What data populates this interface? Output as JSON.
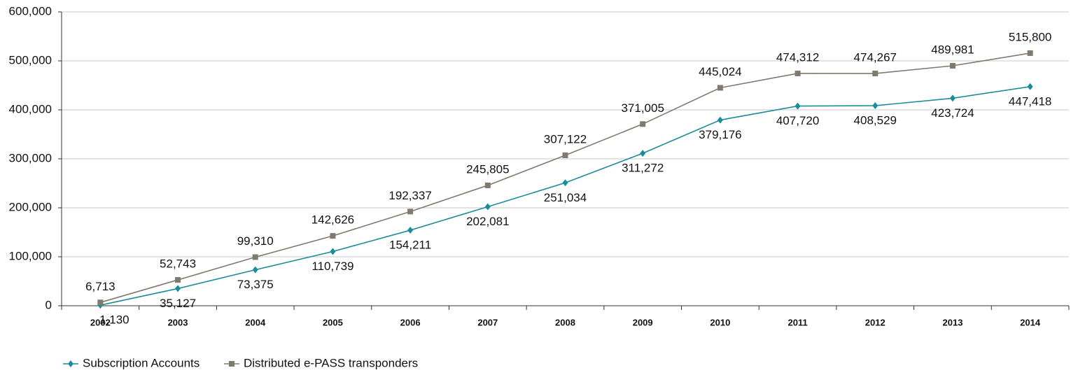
{
  "chart_data": {
    "type": "line",
    "categories": [
      "2002",
      "2003",
      "2004",
      "2005",
      "2006",
      "2007",
      "2008",
      "2009",
      "2010",
      "2011",
      "2012",
      "2013",
      "2014"
    ],
    "series": [
      {
        "name": "Subscription Accounts",
        "color": "#1b8c9b",
        "marker": "diamond",
        "values": [
          1130,
          35127,
          73375,
          110739,
          154211,
          202081,
          251034,
          311272,
          379176,
          407720,
          408529,
          423724,
          447418
        ],
        "value_labels": [
          "1,130",
          "35,127",
          "73,375",
          "110,739",
          "154,211",
          "202,081",
          "251,034",
          "311,272",
          "379,176",
          "407,720",
          "408,529",
          "423,724",
          "447,418"
        ]
      },
      {
        "name": "Distributed e-PASS transponders",
        "color": "#80796d",
        "marker": "square",
        "values": [
          6713,
          52743,
          99310,
          142626,
          192337,
          245805,
          307122,
          371005,
          445024,
          474312,
          474267,
          489981,
          515800
        ],
        "value_labels": [
          "6,713",
          "52,743",
          "99,310",
          "142,626",
          "192,337",
          "245,805",
          "307,122",
          "371,005",
          "445,024",
          "474,312",
          "474,267",
          "489,981",
          "515,800"
        ]
      }
    ],
    "ylim": [
      0,
      600000
    ],
    "yticks": [
      0,
      {
        "value": 100000,
        "label": "100,000"
      },
      {
        "value": 200000,
        "label": "200,000"
      },
      {
        "value": 300000,
        "label": "300,000"
      },
      {
        "value": 400000,
        "label": "400,000"
      },
      {
        "value": 500000,
        "label": "500,000"
      },
      {
        "value": 600000,
        "label": "600,000"
      }
    ],
    "grid": true,
    "legend": "bottom-left"
  }
}
